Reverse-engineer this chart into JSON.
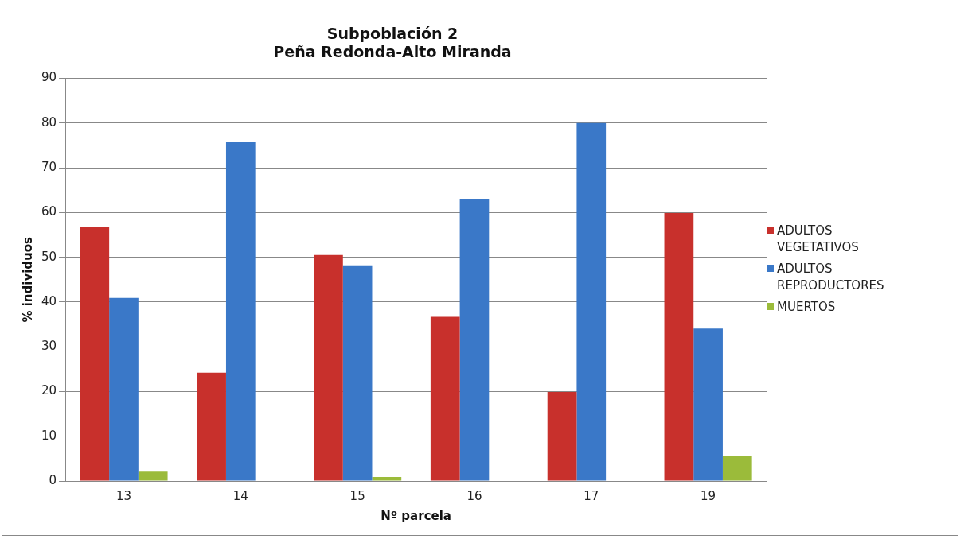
{
  "chart_data": {
    "type": "bar",
    "title": "Subpoblación 2\nPeña Redonda-Alto Miranda",
    "xlabel": "Nº parcela",
    "ylabel": "% individuos",
    "categories": [
      "13",
      "14",
      "15",
      "16",
      "17",
      "19"
    ],
    "series": [
      {
        "name": "ADULTOS VEGETATIVOS",
        "color": "#c8302c",
        "values": [
          56.7,
          24.2,
          50.5,
          36.7,
          19.9,
          59.9
        ]
      },
      {
        "name": "ADULTOS REPRODUCTORES",
        "color": "#3a78c8",
        "values": [
          40.9,
          75.9,
          48.2,
          63.1,
          80,
          34.1
        ]
      },
      {
        "name": "MUERTOS",
        "color": "#9bbb3a",
        "values": [
          2.1,
          0,
          0.9,
          0,
          0,
          5.7
        ]
      }
    ],
    "ylim": [
      0,
      90
    ],
    "yticks": [
      0,
      10,
      20,
      30,
      40,
      50,
      60,
      70,
      80,
      90
    ],
    "grid": "y",
    "legend": "right"
  }
}
